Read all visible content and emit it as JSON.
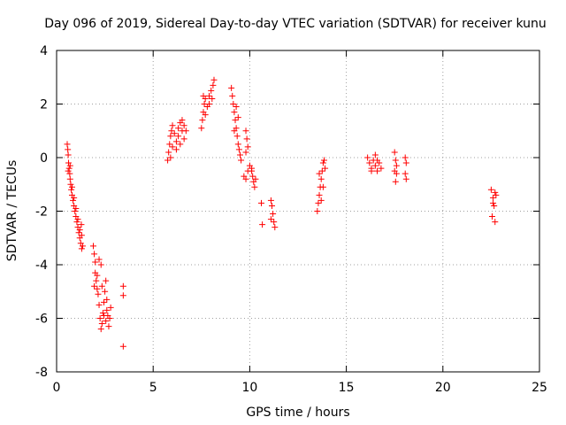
{
  "chart_data": {
    "type": "scatter",
    "title": "Day 096 of 2019, Sidereal Day-to-day VTEC variation (SDTVAR) for receiver kunu",
    "xlabel": "GPS time / hours",
    "ylabel": "SDTVAR / TECUs",
    "xlim": [
      0,
      25
    ],
    "ylim": [
      -8,
      4
    ],
    "xticks": [
      0,
      5,
      10,
      15,
      20,
      25
    ],
    "yticks": [
      -8,
      -6,
      -4,
      -2,
      0,
      2,
      4
    ],
    "xtick_labels": [
      "0",
      "5",
      "10",
      "15",
      "20",
      "25"
    ],
    "ytick_labels": [
      "-8",
      "-6",
      "-4",
      "-2",
      "0",
      "2",
      "4"
    ],
    "grid": true,
    "marker": "+",
    "color": "#ff0000",
    "series": [
      {
        "name": "SDTVAR",
        "points": [
          [
            0.55,
            0.5
          ],
          [
            0.58,
            0.3
          ],
          [
            0.6,
            0.1
          ],
          [
            0.62,
            -0.2
          ],
          [
            0.65,
            -0.4
          ],
          [
            0.68,
            -0.6
          ],
          [
            0.7,
            -0.8
          ],
          [
            0.73,
            -1.0
          ],
          [
            0.76,
            -1.2
          ],
          [
            0.8,
            -1.4
          ],
          [
            0.85,
            -1.6
          ],
          [
            0.9,
            -1.8
          ],
          [
            0.95,
            -2.0
          ],
          [
            1.0,
            -2.2
          ],
          [
            1.05,
            -2.4
          ],
          [
            1.1,
            -2.6
          ],
          [
            1.15,
            -2.8
          ],
          [
            1.2,
            -3.0
          ],
          [
            1.25,
            -3.2
          ],
          [
            1.3,
            -3.4
          ],
          [
            0.6,
            -0.5
          ],
          [
            0.7,
            -0.3
          ],
          [
            0.8,
            -1.1
          ],
          [
            0.9,
            -1.5
          ],
          [
            1.0,
            -1.9
          ],
          [
            1.1,
            -2.3
          ],
          [
            1.2,
            -2.7
          ],
          [
            1.3,
            -2.9
          ],
          [
            1.35,
            -3.3
          ],
          [
            1.28,
            -2.5
          ],
          [
            1.9,
            -3.3
          ],
          [
            1.95,
            -3.6
          ],
          [
            2.0,
            -3.9
          ],
          [
            2.0,
            -4.3
          ],
          [
            2.05,
            -4.6
          ],
          [
            2.1,
            -4.9
          ],
          [
            2.15,
            -5.1
          ],
          [
            2.2,
            -5.5
          ],
          [
            2.25,
            -6.0
          ],
          [
            2.3,
            -6.4
          ],
          [
            2.35,
            -6.2
          ],
          [
            2.4,
            -5.8
          ],
          [
            2.45,
            -5.4
          ],
          [
            2.5,
            -5.0
          ],
          [
            2.55,
            -4.6
          ],
          [
            2.6,
            -5.3
          ],
          [
            2.65,
            -5.9
          ],
          [
            2.7,
            -6.3
          ],
          [
            2.75,
            -6.0
          ],
          [
            2.8,
            -5.6
          ],
          [
            2.3,
            -4.0
          ],
          [
            2.2,
            -3.8
          ],
          [
            2.1,
            -4.4
          ],
          [
            2.35,
            -4.8
          ],
          [
            2.45,
            -5.9
          ],
          [
            2.55,
            -6.1
          ],
          [
            2.6,
            -5.7
          ],
          [
            1.95,
            -4.8
          ],
          [
            3.45,
            -4.8
          ],
          [
            3.45,
            -5.15
          ],
          [
            3.45,
            -7.05
          ],
          [
            5.75,
            -0.1
          ],
          [
            5.8,
            0.2
          ],
          [
            5.85,
            0.5
          ],
          [
            5.9,
            0.8
          ],
          [
            5.95,
            1.0
          ],
          [
            6.0,
            1.2
          ],
          [
            6.1,
            0.9
          ],
          [
            6.2,
            0.6
          ],
          [
            6.3,
            1.1
          ],
          [
            6.4,
            1.3
          ],
          [
            6.5,
            1.4
          ],
          [
            6.6,
            1.2
          ],
          [
            6.7,
            1.0
          ],
          [
            6.2,
            0.3
          ],
          [
            6.4,
            0.5
          ],
          [
            6.6,
            0.7
          ],
          [
            6.0,
            0.4
          ],
          [
            6.3,
            0.8
          ],
          [
            6.5,
            1.0
          ],
          [
            5.9,
            0.0
          ],
          [
            7.5,
            1.1
          ],
          [
            7.55,
            1.4
          ],
          [
            7.6,
            1.7
          ],
          [
            7.65,
            2.0
          ],
          [
            7.7,
            2.2
          ],
          [
            7.8,
            1.9
          ],
          [
            7.9,
            2.3
          ],
          [
            8.0,
            2.5
          ],
          [
            8.1,
            2.7
          ],
          [
            8.15,
            2.9
          ],
          [
            7.7,
            1.6
          ],
          [
            7.9,
            2.0
          ],
          [
            8.05,
            2.2
          ],
          [
            7.6,
            2.3
          ],
          [
            9.05,
            2.6
          ],
          [
            9.1,
            2.3
          ],
          [
            9.15,
            2.0
          ],
          [
            9.2,
            1.7
          ],
          [
            9.25,
            1.4
          ],
          [
            9.3,
            1.1
          ],
          [
            9.35,
            0.8
          ],
          [
            9.4,
            0.5
          ],
          [
            9.45,
            0.3
          ],
          [
            9.5,
            0.1
          ],
          [
            9.55,
            -0.1
          ],
          [
            9.3,
            1.9
          ],
          [
            9.4,
            1.5
          ],
          [
            9.2,
            1.0
          ],
          [
            9.8,
            1.0
          ],
          [
            9.85,
            0.7
          ],
          [
            9.9,
            0.4
          ],
          [
            9.8,
            0.2
          ],
          [
            9.7,
            -0.7
          ],
          [
            9.8,
            -0.8
          ],
          [
            9.9,
            -0.5
          ],
          [
            10.0,
            -0.3
          ],
          [
            10.1,
            -0.5
          ],
          [
            10.15,
            -0.7
          ],
          [
            10.2,
            -0.9
          ],
          [
            10.25,
            -1.1
          ],
          [
            10.3,
            -0.8
          ],
          [
            10.1,
            -0.4
          ],
          [
            10.6,
            -1.7
          ],
          [
            10.65,
            -2.5
          ],
          [
            11.1,
            -1.6
          ],
          [
            11.15,
            -1.8
          ],
          [
            11.2,
            -2.1
          ],
          [
            11.25,
            -2.4
          ],
          [
            11.3,
            -2.6
          ],
          [
            11.1,
            -2.3
          ],
          [
            13.5,
            -2.0
          ],
          [
            13.55,
            -1.7
          ],
          [
            13.6,
            -1.4
          ],
          [
            13.65,
            -1.1
          ],
          [
            13.7,
            -0.8
          ],
          [
            13.75,
            -0.5
          ],
          [
            13.8,
            -0.2
          ],
          [
            13.85,
            -0.1
          ],
          [
            13.6,
            -0.6
          ],
          [
            13.7,
            -1.6
          ],
          [
            13.8,
            -1.1
          ],
          [
            13.9,
            -0.4
          ],
          [
            16.1,
            0.0
          ],
          [
            16.2,
            -0.2
          ],
          [
            16.3,
            -0.4
          ],
          [
            16.4,
            -0.1
          ],
          [
            16.5,
            -0.3
          ],
          [
            16.6,
            -0.5
          ],
          [
            16.7,
            -0.2
          ],
          [
            16.8,
            -0.4
          ],
          [
            16.5,
            0.1
          ],
          [
            16.3,
            -0.5
          ],
          [
            16.6,
            -0.1
          ],
          [
            17.5,
            0.2
          ],
          [
            17.55,
            -0.1
          ],
          [
            17.6,
            -0.3
          ],
          [
            17.5,
            -0.5
          ],
          [
            17.55,
            -0.9
          ],
          [
            17.6,
            -0.6
          ],
          [
            18.05,
            -0.6
          ],
          [
            18.1,
            -0.8
          ],
          [
            18.05,
            0.0
          ],
          [
            18.1,
            -0.2
          ],
          [
            22.5,
            -1.2
          ],
          [
            22.6,
            -1.5
          ],
          [
            22.7,
            -1.3
          ],
          [
            22.65,
            -1.8
          ],
          [
            22.55,
            -2.2
          ],
          [
            22.7,
            -2.4
          ],
          [
            22.6,
            -1.7
          ],
          [
            22.75,
            -1.4
          ]
        ]
      }
    ]
  }
}
